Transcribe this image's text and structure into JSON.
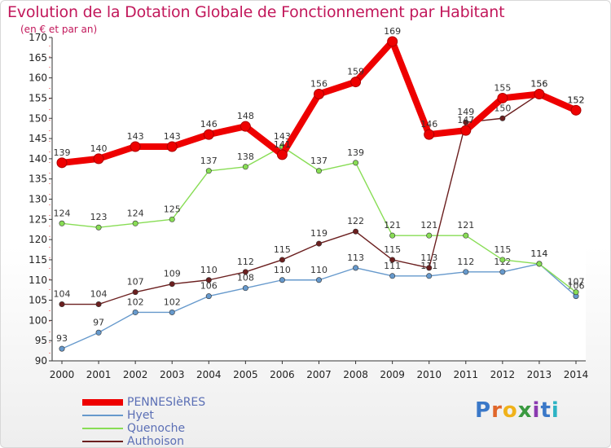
{
  "header": {
    "title": "Evolution de la Dotation Globale de Fonctionnement par Habitant",
    "subtitle": "(en € et par an)"
  },
  "brand": {
    "text": "Proxiti"
  },
  "chart_data": {
    "type": "line",
    "title": "Evolution de la Dotation Globale de Fonctionnement par Habitant",
    "subtitle": "(en € et par an)",
    "xlabel": "",
    "ylabel": "",
    "ylim": [
      90,
      170
    ],
    "yticks": [
      90,
      95,
      100,
      105,
      110,
      115,
      120,
      125,
      130,
      135,
      140,
      145,
      150,
      155,
      160,
      165,
      170
    ],
    "grid": false,
    "legend_position": "bottom-left",
    "categories": [
      "2000",
      "2001",
      "2002",
      "2003",
      "2004",
      "2005",
      "2006",
      "2007",
      "2008",
      "2009",
      "2010",
      "2011",
      "2012",
      "2013",
      "2014"
    ],
    "series": [
      {
        "name": "PENNESIèRES",
        "color": "#ee0000",
        "highlight": true,
        "values": [
          139,
          140,
          143,
          143,
          146,
          148,
          141,
          156,
          159,
          169,
          146,
          147,
          155,
          156,
          152
        ],
        "labels": [
          "139",
          "140",
          "143",
          "143",
          "146",
          "148",
          "141",
          "156",
          "159",
          "169",
          "146",
          "147",
          "155",
          "156",
          "152"
        ]
      },
      {
        "name": "Hyet",
        "color": "#6699cc",
        "values": [
          93,
          97,
          102,
          102,
          106,
          108,
          110,
          110,
          113,
          111,
          111,
          112,
          112,
          114,
          106
        ],
        "labels": [
          "93",
          "97",
          "102",
          "102",
          "106",
          "108",
          "110",
          "110",
          "113",
          "111",
          "111",
          "112",
          "112",
          "114",
          "106"
        ]
      },
      {
        "name": "Quenoche",
        "color": "#88dd55",
        "values": [
          124,
          123,
          124,
          125,
          137,
          138,
          143,
          137,
          139,
          121,
          121,
          121,
          115,
          114,
          107
        ],
        "labels": [
          "124",
          "123",
          "124",
          "125",
          "137",
          "138",
          "143",
          "137",
          "139",
          "121",
          "121",
          "121",
          "115",
          "114",
          "107"
        ]
      },
      {
        "name": "Authoison",
        "color": "#6b1f1f",
        "values": [
          104,
          104,
          107,
          109,
          110,
          112,
          115,
          119,
          122,
          115,
          113,
          149,
          150,
          156,
          152
        ],
        "labels": [
          "104",
          "104",
          "107",
          "109",
          "110",
          "112",
          "115",
          "119",
          "122",
          "115",
          "113",
          "149",
          "150",
          "156",
          "152"
        ]
      }
    ]
  }
}
